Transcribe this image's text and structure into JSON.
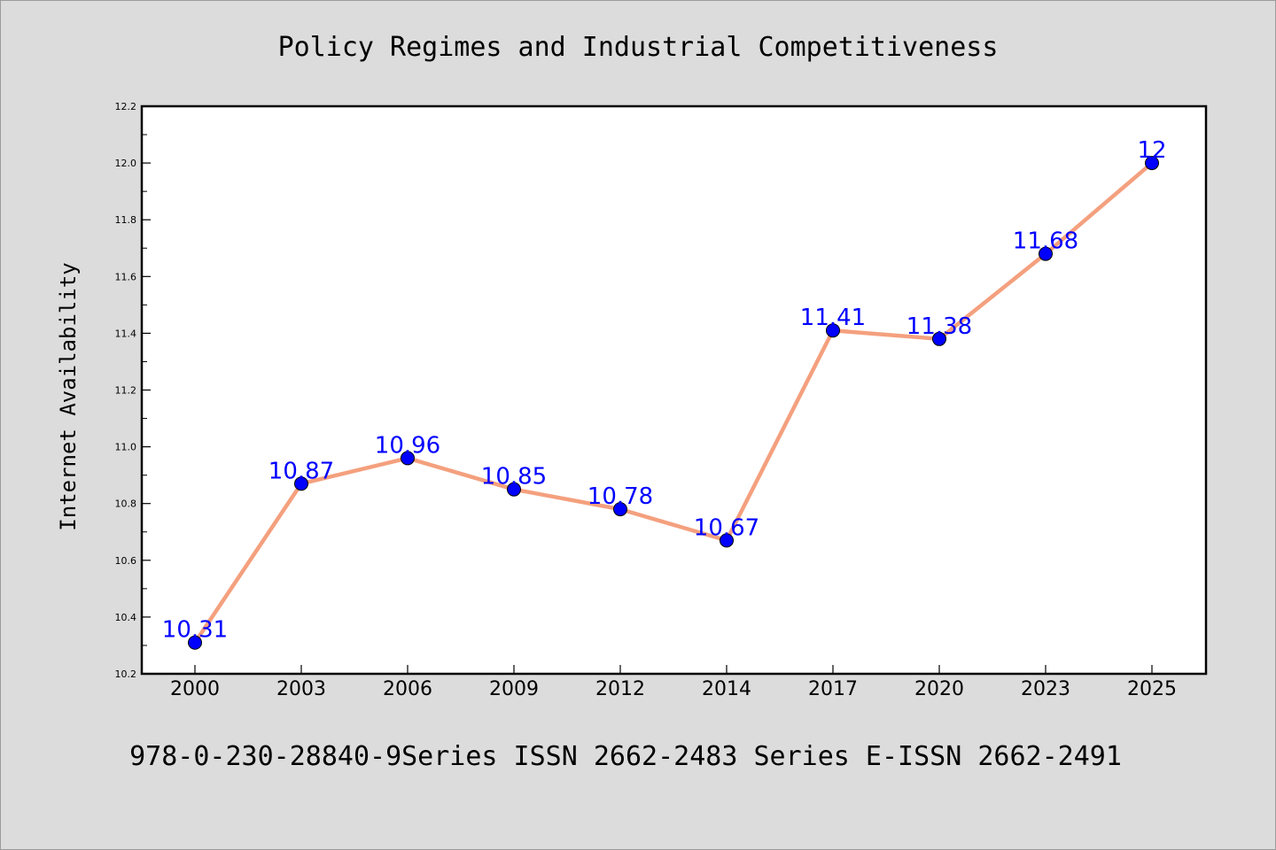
{
  "chart_data": {
    "type": "line",
    "title": "Policy Regimes and Industrial Competitiveness",
    "subtitle": "978-0-230-28840-9Series ISSN 2662-2483 Series E-ISSN 2662-2491",
    "xlabel": "",
    "ylabel": "Internet Availability",
    "categories": [
      "2000",
      "2003",
      "2006",
      "2009",
      "2012",
      "2014",
      "2017",
      "2020",
      "2023",
      "2025"
    ],
    "series": [
      {
        "values": [
          10.31,
          10.87,
          10.96,
          10.85,
          10.78,
          10.67,
          11.41,
          11.38,
          11.68,
          12
        ],
        "data_labels": [
          "10.31",
          "10.87",
          "10.96",
          "10.85",
          "10.78",
          "10.67",
          "11.41",
          "11.38",
          "11.68",
          "12"
        ]
      }
    ],
    "ylim": [
      10.2,
      12.2
    ],
    "yticks": [
      "10.2",
      "10.4",
      "10.6",
      "10.8",
      "11.0",
      "11.2",
      "11.4",
      "11.6",
      "11.8",
      "12.0",
      "12.2"
    ],
    "grid": false,
    "legend": "none",
    "colors": {
      "background": "#dcdcdc",
      "plot_background": "#ffffff",
      "line": "#f4a07e",
      "marker": "#0000ff",
      "data_label": "#0000ff",
      "text": "#000000"
    }
  }
}
